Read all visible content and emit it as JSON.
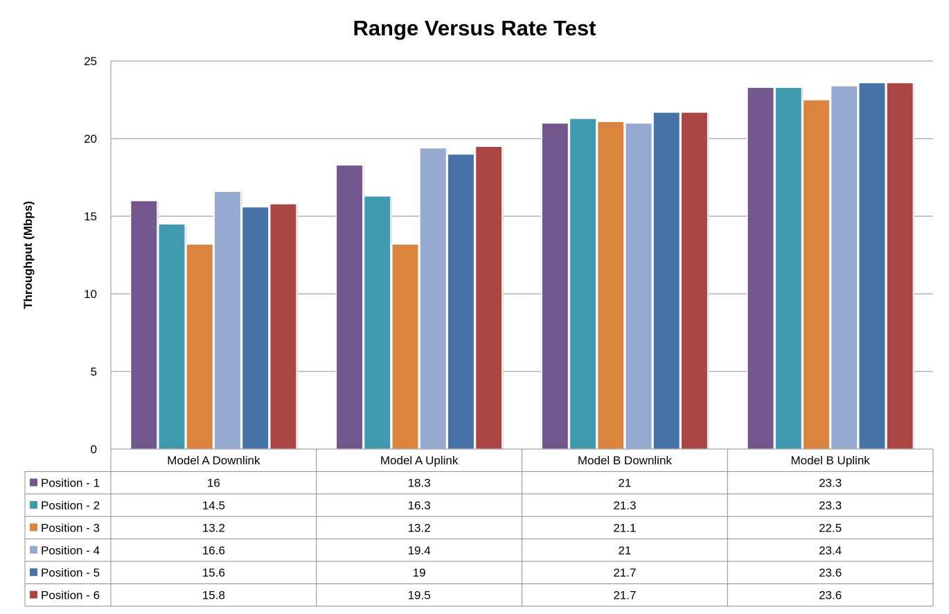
{
  "chart_data": {
    "type": "bar",
    "title": "Range Versus Rate Test",
    "ylabel": "Throughput  (Mbps)",
    "xlabel": "",
    "ylim": [
      0,
      25
    ],
    "yticks": [
      0,
      5,
      10,
      15,
      20,
      25
    ],
    "grid": true,
    "legend_placement": "data-table-left",
    "categories": [
      "Model A Downlink",
      "Model A Uplink",
      "Model B Downlink",
      "Model B Uplink"
    ],
    "series": [
      {
        "name": "Position - 1",
        "color": "#73568E",
        "values": [
          16,
          18.3,
          21,
          23.3
        ]
      },
      {
        "name": "Position - 2",
        "color": "#409AAF",
        "values": [
          14.5,
          16.3,
          21.3,
          23.3
        ]
      },
      {
        "name": "Position - 3",
        "color": "#DB843D",
        "values": [
          13.2,
          13.2,
          21.1,
          22.5
        ]
      },
      {
        "name": "Position - 4",
        "color": "#95A9D1",
        "values": [
          16.6,
          19.4,
          21,
          23.4
        ]
      },
      {
        "name": "Position - 5",
        "color": "#4572A7",
        "values": [
          15.6,
          19,
          21.7,
          23.6
        ]
      },
      {
        "name": "Position - 6",
        "color": "#AA4643",
        "values": [
          15.8,
          19.5,
          21.7,
          23.6
        ]
      }
    ],
    "data_table_labels": [
      [
        "16",
        "18.3",
        "21",
        "23.3"
      ],
      [
        "14.5",
        "16.3",
        "21.3",
        "23.3"
      ],
      [
        "13.2",
        "13.2",
        "21.1",
        "22.5"
      ],
      [
        "16.6",
        "19.4",
        "21",
        "23.4"
      ],
      [
        "15.6",
        "19",
        "21.7",
        "23.6"
      ],
      [
        "15.8",
        "19.5",
        "21.7",
        "23.6"
      ]
    ]
  }
}
